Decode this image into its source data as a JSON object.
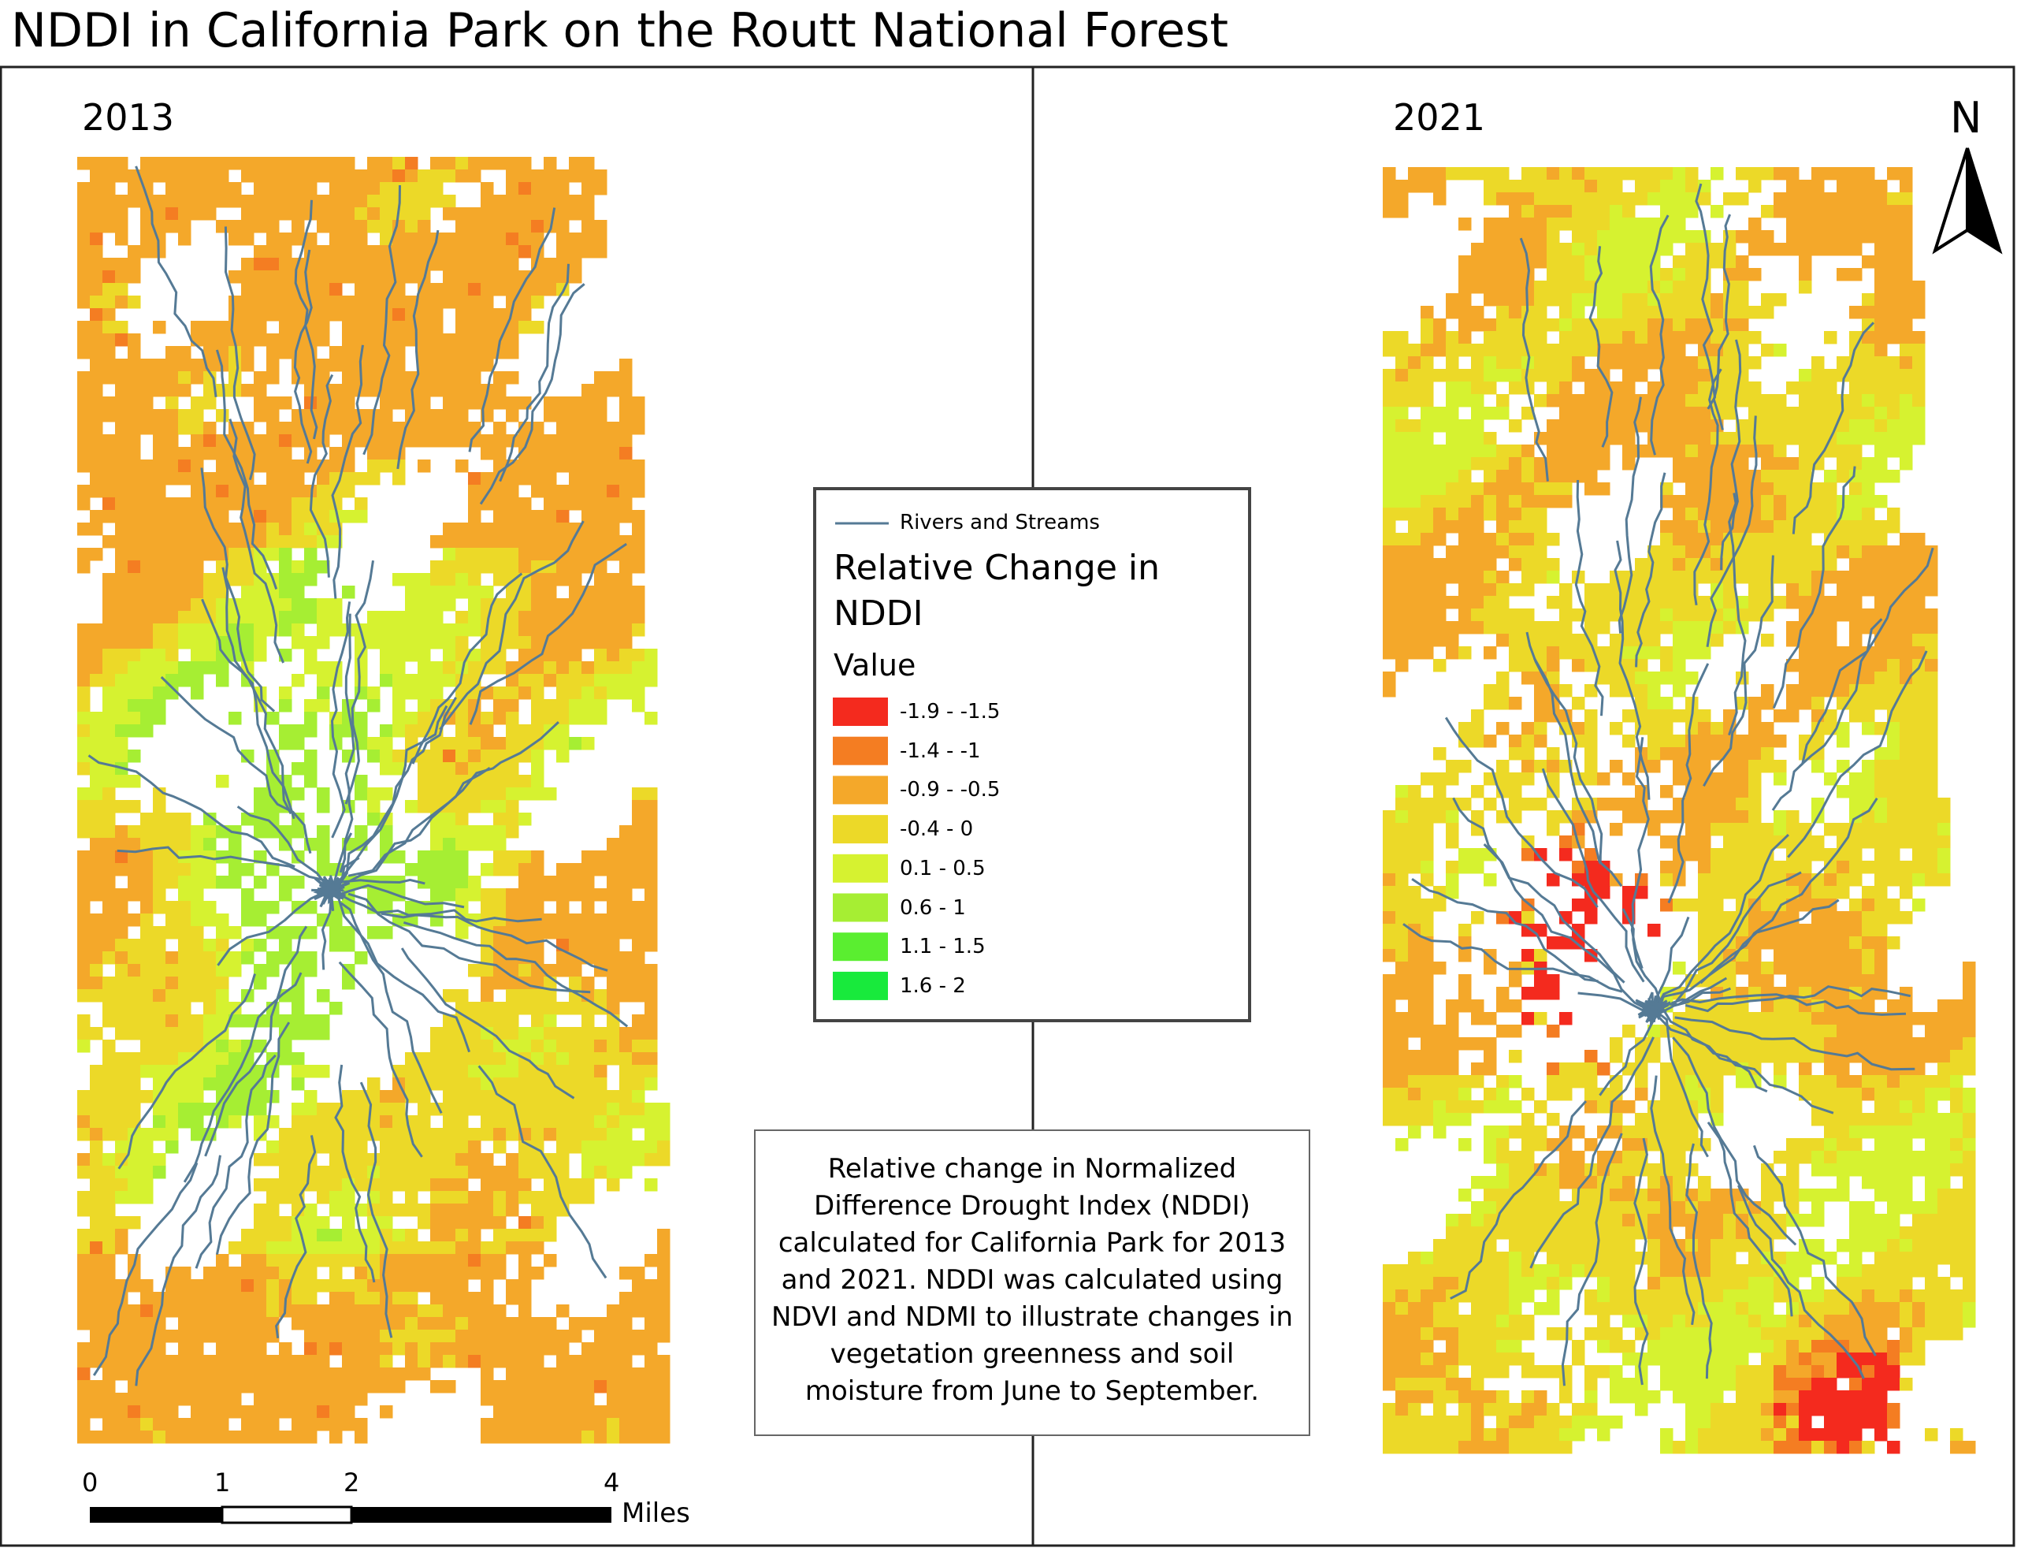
{
  "title": "NDDI in California Park on the Routt National Forest",
  "panels": [
    {
      "label": "2013"
    },
    {
      "label": "2021"
    }
  ],
  "north_label": "N",
  "legend": {
    "line_label": "Rivers and Streams",
    "title": "Relative Change in NDDI",
    "subtitle": "Value",
    "items": [
      {
        "label": "-1.9 - -1.5",
        "color": "#f42a1e"
      },
      {
        "label": "-1.4 - -1",
        "color": "#f47d22"
      },
      {
        "label": "-0.9 - -0.5",
        "color": "#f4a82a"
      },
      {
        "label": "-0.4 - 0",
        "color": "#ecd928"
      },
      {
        "label": "0.1 - 0.5",
        "color": "#d6f230"
      },
      {
        "label": "0.6 - 1",
        "color": "#a6ee33"
      },
      {
        "label": "1.1 - 1.5",
        "color": "#5aee30"
      },
      {
        "label": "1.6 - 2",
        "color": "#18ea3c"
      }
    ]
  },
  "scale_bar": {
    "ticks": [
      "0",
      "1",
      "2",
      "4"
    ],
    "unit": "Miles"
  },
  "description": "Relative change in Normalized Difference Drought Index (NDDI) calculated for California Park for 2013 and 2021. NDDI was calculated using NDVI and NDMI to illustrate changes in vegetation greenness and soil moisture from June to September."
}
